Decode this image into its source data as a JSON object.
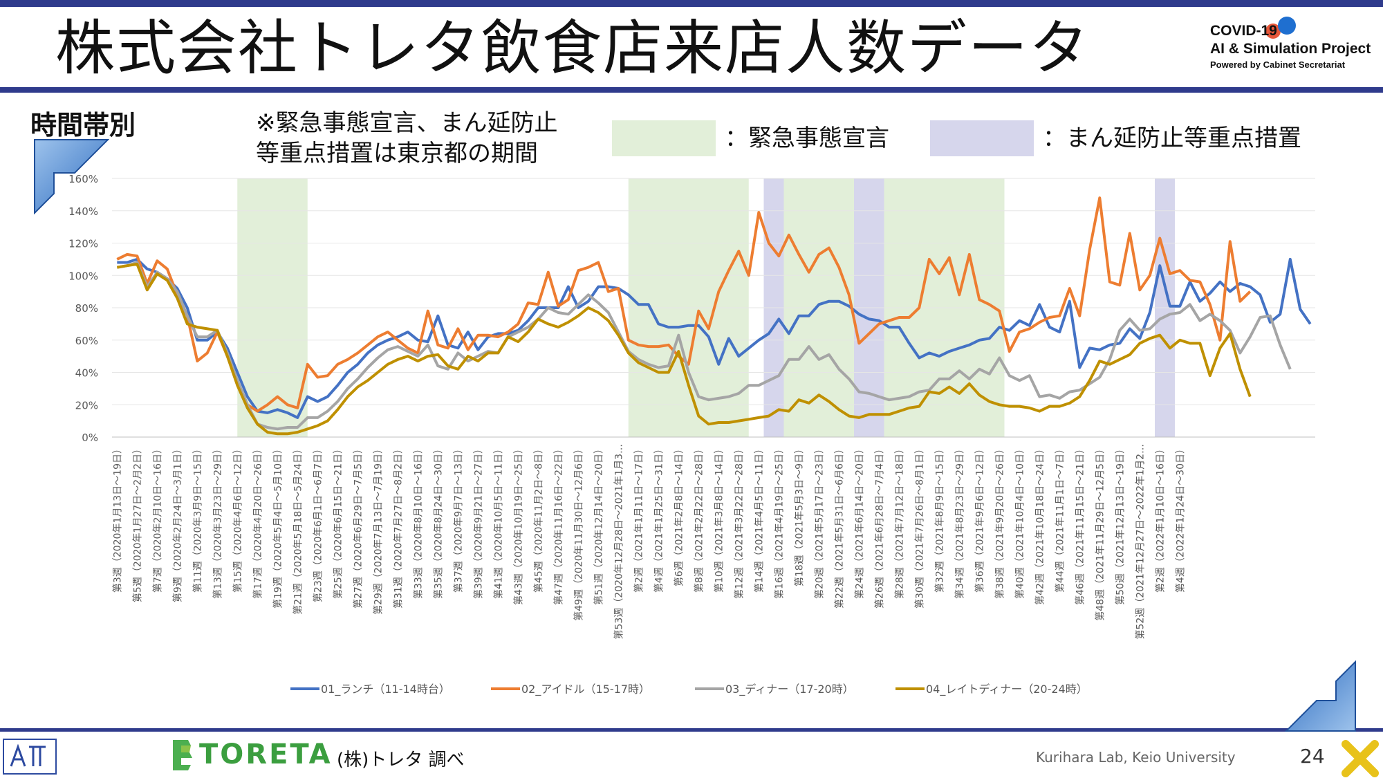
{
  "slide": {
    "title": "株式会社トレタ飲食店来店人数データ",
    "section": "時間帯別",
    "note_line1": "※緊急事態宣言、まん延防止",
    "note_line2": "等重点措置は東京都の期間",
    "legend_emergency": "：緊急事態宣言",
    "legend_manen": "：まん延防止等重点措置",
    "brand_line1": "COVID-19",
    "brand_line2": "AI & Simulation Project",
    "brand_line3": "Powered by Cabinet Secretariat",
    "logo_text": "TORETA",
    "source": "(株)トレタ 調べ",
    "lab": "Kurihara Lab, Keio University",
    "page": "24"
  },
  "colors": {
    "emergency": "#e2efd9",
    "manen": "#d6d6ec",
    "lunch": "#4472c4",
    "idle": "#ed7d31",
    "dinner": "#a5a5a5",
    "late": "#bf9000",
    "accent_bar": "#2f3b8c"
  },
  "chart_data": {
    "type": "line",
    "ylim": [
      0,
      160
    ],
    "yticks": [
      "0%",
      "20%",
      "40%",
      "60%",
      "80%",
      "100%",
      "120%",
      "140%",
      "160%"
    ],
    "tick_labels": [
      "第3週（2020年1月13日～19日）",
      "第5週（2020年1月27日～2月2日）",
      "第7週（2020年2月10日～16日）",
      "第9週（2020年2月24日～3月1日）",
      "第11週（2020年3月9日～15日）",
      "第13週（2020年3月23日～29日）",
      "第15週（2020年4月6日～12日）",
      "第17週（2020年4月20日～26日）",
      "第19週（2020年5月4日～5月10日）",
      "第21週（2020年5月18日～5月24日）",
      "第23週（2020年6月1日～6月7日）",
      "第25週（2020年6月15日～21日）",
      "第27週（2020年6月29日～7月5日）",
      "第29週（2020年7月13日～7月19日）",
      "第31週（2020年7月27日～8月2日）",
      "第33週（2020年8月10日～16日）",
      "第35週（2020年8月24日～30日）",
      "第37週（2020年9月7日～13日）",
      "第39週（2020年9月21日～27日）",
      "第41週（2020年10月5日～11日）",
      "第43週（2020年10月19日～25日）",
      "第45週（2020年11月2日～8日）",
      "第47週（2020年11月16日～22日）",
      "第49週（2020年11月30日～12月6日）",
      "第51週（2020年12月14日～20日）",
      "第53週（2020年12月28日～2021年1月3…",
      "第2週（2021年1月11日～17日）",
      "第4週（2021年1月25日～31日）",
      "第6週（2021年2月8日～14日）",
      "第8週（2021年2月22日～28日）",
      "第10週（2021年3月8日～14日）",
      "第12週（2021年3月22日～28日）",
      "第14週（2021年4月5日～11日）",
      "第16週（2021年4月19日～25日）",
      "第18週（2021年5月3日～9日）",
      "第20週（2021年5月17日～23日）",
      "第22週（2021年5月31日～6月6日）",
      "第24週（2021年6月14日～20日）",
      "第26週（2021年6月28日～7月4日）",
      "第28週（2021年7月12日～18日）",
      "第30週（2021年7月26日～8月1日）",
      "第32週（2021年8月9日～15日）",
      "第34週（2021年8月23日～29日）",
      "第36週（2021年9月6日～12日）",
      "第38週（2021年9月20日～26日）",
      "第40週（2021年10月4日～10日）",
      "第42週（2021年10月18日～24日）",
      "第44週（2021年11月1日～7日）",
      "第46週（2021年11月15日～21日）",
      "第48週（2021年11月29日～12月5日）",
      "第50週（2021年12月13日～19日）",
      "第52週（2021年12月27日～2022年1月2…",
      "第2週（2022年1月10日～16日）",
      "第4週（2022年1月24日～30日）"
    ],
    "emergency_periods": [
      [
        12.5,
        19.5
      ],
      [
        51.5,
        63.5
      ],
      [
        67,
        74
      ],
      [
        77,
        89
      ]
    ],
    "manen_periods": [
      [
        65,
        67
      ],
      [
        74,
        77
      ],
      [
        104,
        106
      ]
    ],
    "series": [
      {
        "name": "01_ランチ（11-14時台）",
        "values": [
          108,
          108,
          110,
          104,
          102,
          98,
          92,
          80,
          60,
          60,
          65,
          55,
          40,
          25,
          16,
          15,
          17,
          15,
          12,
          25,
          22,
          25,
          32,
          40,
          45,
          52,
          57,
          60,
          62,
          65,
          60,
          59,
          75,
          57,
          55,
          65,
          54,
          62,
          64,
          64,
          66,
          72,
          80,
          80,
          80,
          93,
          80,
          84,
          93,
          93,
          92,
          88,
          82,
          82,
          70,
          68,
          68,
          69,
          69,
          62,
          45,
          61,
          50,
          55,
          60,
          64,
          73,
          64,
          75,
          75,
          82,
          84,
          84,
          81,
          76,
          73,
          72,
          68,
          68,
          58,
          49,
          52,
          50,
          53,
          55,
          57,
          60,
          61,
          68,
          66,
          72,
          69,
          82,
          68,
          65,
          84,
          43,
          55,
          54,
          57,
          58,
          67,
          61,
          77,
          106,
          81,
          81,
          96,
          84,
          89,
          96,
          90,
          95,
          93,
          88,
          71,
          76,
          110,
          79,
          70
        ]
      },
      {
        "name": "02_アイドル（15-17時）",
        "values": [
          110,
          113,
          112,
          95,
          109,
          104,
          88,
          75,
          47,
          52,
          65,
          50,
          35,
          20,
          16,
          20,
          25,
          20,
          18,
          45,
          37,
          38,
          45,
          48,
          52,
          57,
          62,
          65,
          60,
          55,
          52,
          78,
          57,
          55,
          67,
          54,
          63,
          63,
          62,
          65,
          70,
          83,
          82,
          102,
          81,
          85,
          103,
          105,
          108,
          90,
          92,
          60,
          57,
          56,
          56,
          57,
          50,
          45,
          78,
          67,
          90,
          103,
          115,
          100,
          139,
          120,
          112,
          125,
          113,
          102,
          113,
          117,
          105,
          88,
          58,
          64,
          70,
          72,
          74,
          74,
          80,
          110,
          101,
          111,
          88,
          113,
          85,
          82,
          78,
          53,
          65,
          67,
          71,
          74,
          75,
          92,
          75,
          116,
          148,
          96,
          94,
          126,
          91,
          100,
          123,
          101,
          103,
          97,
          96,
          82,
          60,
          121,
          84,
          90
        ]
      },
      {
        "name": "03_ディナー（17-20時）",
        "values": [
          105,
          106,
          108,
          93,
          102,
          98,
          90,
          75,
          62,
          62,
          66,
          52,
          35,
          20,
          8,
          6,
          5,
          6,
          6,
          12,
          12,
          16,
          22,
          30,
          36,
          43,
          49,
          54,
          56,
          53,
          50,
          57,
          44,
          42,
          52,
          47,
          50,
          53,
          52,
          62,
          65,
          68,
          73,
          80,
          77,
          76,
          82,
          88,
          83,
          77,
          65,
          53,
          48,
          45,
          43,
          44,
          63,
          40,
          25,
          23,
          24,
          25,
          27,
          32,
          32,
          35,
          38,
          48,
          48,
          56,
          48,
          51,
          42,
          36,
          28,
          27,
          25,
          23,
          24,
          25,
          28,
          29,
          36,
          36,
          41,
          36,
          42,
          39,
          49,
          38,
          35,
          38,
          25,
          26,
          24,
          28,
          29,
          33,
          37,
          48,
          66,
          73,
          66,
          67,
          73,
          76,
          77,
          82,
          72,
          76,
          72,
          66,
          52,
          62,
          74,
          75,
          57,
          42
        ]
      },
      {
        "name": "04_レイトディナー（20-24時）",
        "values": [
          105,
          106,
          107,
          91,
          101,
          97,
          86,
          70,
          68,
          67,
          66,
          50,
          32,
          18,
          8,
          3,
          2,
          2,
          3,
          5,
          7,
          10,
          17,
          25,
          31,
          35,
          40,
          45,
          48,
          50,
          47,
          50,
          51,
          44,
          42,
          50,
          47,
          52,
          52,
          62,
          59,
          65,
          73,
          70,
          68,
          71,
          75,
          80,
          77,
          72,
          63,
          52,
          46,
          43,
          40,
          40,
          53,
          32,
          13,
          8,
          9,
          9,
          10,
          11,
          12,
          13,
          17,
          16,
          23,
          21,
          26,
          22,
          17,
          13,
          12,
          14,
          14,
          14,
          16,
          18,
          19,
          28,
          27,
          31,
          27,
          33,
          26,
          22,
          20,
          19,
          19,
          18,
          16,
          19,
          19,
          21,
          25,
          35,
          47,
          45,
          48,
          51,
          58,
          61,
          63,
          55,
          60,
          58,
          58,
          38,
          55,
          64,
          42,
          25
        ]
      }
    ]
  }
}
